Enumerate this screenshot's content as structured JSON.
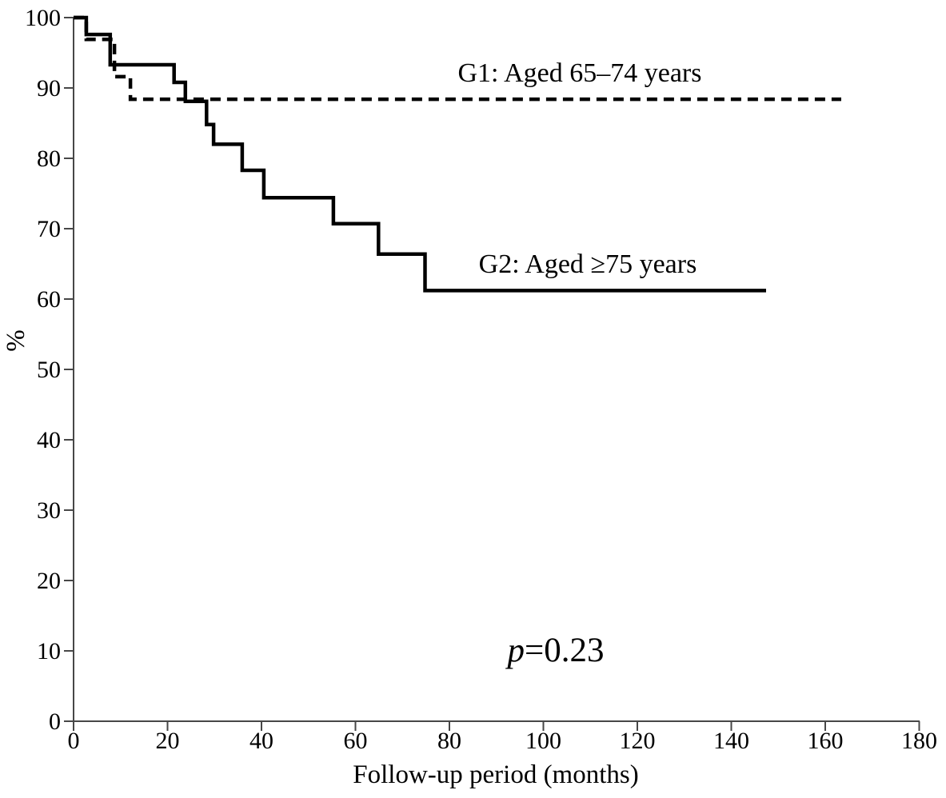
{
  "chart_data": {
    "type": "line",
    "subtype": "kaplan_meier_step_survival",
    "title": "",
    "xlabel": "Follow-up period (months)",
    "ylabel": "%",
    "xlim": [
      0,
      180
    ],
    "ylim": [
      0,
      100
    ],
    "xticks": [
      0,
      20,
      40,
      60,
      80,
      100,
      120,
      140,
      160,
      180
    ],
    "yticks": [
      0,
      10,
      20,
      30,
      40,
      50,
      60,
      70,
      80,
      90,
      100
    ],
    "grid": false,
    "legend_position": "inline-annotations",
    "colors": {
      "curves": "#000000",
      "axis": "#474747",
      "text": "#000000",
      "background": "#ffffff"
    },
    "annotations": {
      "g1": {
        "text": "G1: Aged 65–74 years",
        "x_months": 107.7,
        "y_pct": 92.3
      },
      "g2": {
        "text": "G2: Aged ≥75 years",
        "x_months": 109.4,
        "y_pct": 65.1
      },
      "p_value": {
        "italic": "p",
        "rest": "=0.23",
        "x_months": 102.6,
        "y_pct": 10.2
      }
    },
    "series": [
      {
        "name": "G1: Aged 65–74 years",
        "style": "dashed",
        "final_value_pct": 88.4,
        "points": [
          [
            0,
            100
          ],
          [
            2.7,
            100
          ],
          [
            2.7,
            96.9
          ],
          [
            8.7,
            96.9
          ],
          [
            8.7,
            91.6
          ],
          [
            12.1,
            91.6
          ],
          [
            12.1,
            88.4
          ],
          [
            163.4,
            88.4
          ]
        ]
      },
      {
        "name": "G2: Aged ≥75 years",
        "style": "solid",
        "final_value_pct": 61.2,
        "points": [
          [
            0,
            100
          ],
          [
            2.7,
            100
          ],
          [
            2.7,
            97.6
          ],
          [
            7.8,
            97.6
          ],
          [
            7.8,
            93.3
          ],
          [
            21.4,
            93.3
          ],
          [
            21.4,
            90.8
          ],
          [
            23.8,
            90.8
          ],
          [
            23.8,
            88.1
          ],
          [
            28.3,
            88.1
          ],
          [
            28.3,
            84.8
          ],
          [
            29.8,
            84.8
          ],
          [
            29.8,
            82.0
          ],
          [
            35.9,
            82.0
          ],
          [
            35.9,
            78.3
          ],
          [
            40.5,
            78.3
          ],
          [
            40.5,
            74.4
          ],
          [
            55.3,
            74.4
          ],
          [
            55.3,
            70.7
          ],
          [
            64.9,
            70.7
          ],
          [
            64.9,
            66.4
          ],
          [
            74.8,
            66.4
          ],
          [
            74.8,
            61.2
          ],
          [
            147.4,
            61.2
          ]
        ]
      }
    ]
  }
}
